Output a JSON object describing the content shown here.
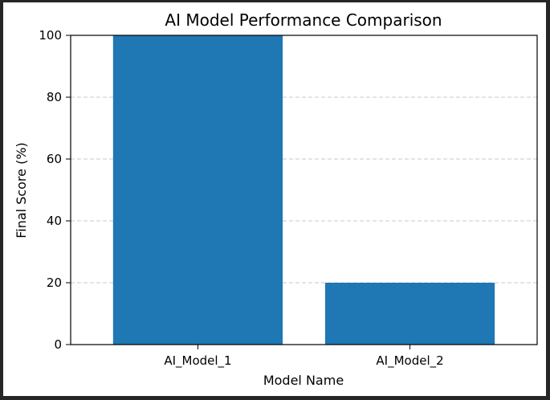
{
  "chart_data": {
    "type": "bar",
    "title": "AI Model Performance Comparison",
    "xlabel": "Model Name",
    "ylabel": "Final Score (%)",
    "categories": [
      "AI_Model_1",
      "AI_Model_2"
    ],
    "values": [
      100,
      20
    ],
    "ylim": [
      0,
      100
    ],
    "yticks": [
      "0",
      "20",
      "40",
      "60",
      "80",
      "100"
    ],
    "grid": "y-axis dashed",
    "bar_color": "#1f77b4"
  }
}
